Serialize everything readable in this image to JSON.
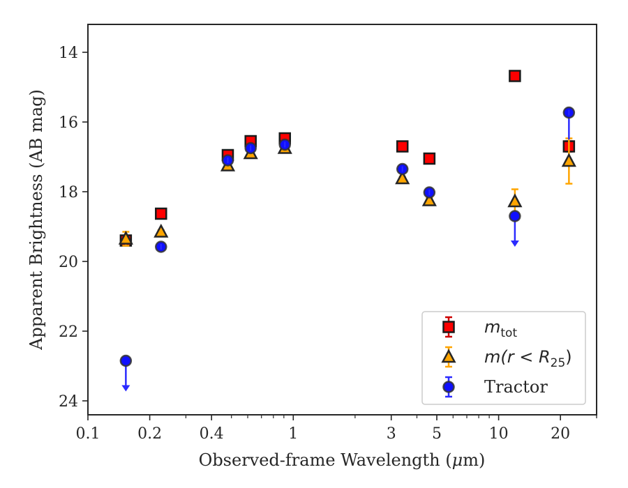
{
  "chart_data": {
    "type": "scatter",
    "xlabel_text": "Observed-frame Wavelength (",
    "xlabel_mu": "μ",
    "xlabel_end": "m)",
    "ylabel": "Apparent Brightness (AB mag)",
    "x_scale": "log",
    "y_inverted": true,
    "xlim": [
      0.1,
      30
    ],
    "ylim": [
      24.4,
      13.2
    ],
    "x_ticks": [
      {
        "value": 0.1,
        "label": "0.1"
      },
      {
        "value": 0.2,
        "label": "0.2"
      },
      {
        "value": 0.4,
        "label": "0.4"
      },
      {
        "value": 1,
        "label": "1"
      },
      {
        "value": 3,
        "label": "3"
      },
      {
        "value": 5,
        "label": "5"
      },
      {
        "value": 10,
        "label": "10"
      },
      {
        "value": 20,
        "label": "20"
      }
    ],
    "y_ticks": [
      {
        "value": 14,
        "label": "14"
      },
      {
        "value": 16,
        "label": "16"
      },
      {
        "value": 18,
        "label": "18"
      },
      {
        "value": 20,
        "label": "20"
      },
      {
        "value": 22,
        "label": "22"
      },
      {
        "value": 24,
        "label": "24"
      }
    ],
    "grid": false,
    "legend_position": "lower-right",
    "legend": [
      {
        "name": "m",
        "sub": "tot",
        "marker": "square",
        "face": "#ff0000",
        "edge": "#1a1a1a",
        "err": "#cc0000"
      },
      {
        "name": "m(r < R",
        "sub": "25",
        "tail": ")",
        "marker": "triangle",
        "face": "#ffa500",
        "edge": "#262626",
        "err": "#ffa500"
      },
      {
        "name": "Tractor",
        "marker": "circle",
        "face": "#1010ff",
        "edge": "#333333",
        "err": "#2b2bff"
      }
    ],
    "series": [
      {
        "marker": "square",
        "points": [
          {
            "x": 0.153,
            "y": 19.4,
            "err": 0.05
          },
          {
            "x": 0.227,
            "y": 18.63,
            "err": 0.05
          },
          {
            "x": 0.48,
            "y": 16.95,
            "err": 0.08
          },
          {
            "x": 0.62,
            "y": 16.55,
            "err": 0.08
          },
          {
            "x": 0.91,
            "y": 16.47,
            "err": 0.08
          },
          {
            "x": 3.4,
            "y": 16.7,
            "err": 0.05
          },
          {
            "x": 4.6,
            "y": 17.05,
            "err": 0.05
          },
          {
            "x": 12.0,
            "y": 14.68,
            "err": 0.05
          },
          {
            "x": 22.0,
            "y": 16.7,
            "err": 0.15
          }
        ]
      },
      {
        "marker": "triangle",
        "points": [
          {
            "x": 0.153,
            "y": 19.35,
            "err": 0.2
          },
          {
            "x": 0.227,
            "y": 19.15,
            "err": 0.05
          },
          {
            "x": 0.48,
            "y": 17.25,
            "err": 0.05
          },
          {
            "x": 0.62,
            "y": 16.9,
            "err": 0.05
          },
          {
            "x": 0.91,
            "y": 16.75,
            "err": 0.05
          },
          {
            "x": 3.4,
            "y": 17.62,
            "err": 0.05
          },
          {
            "x": 4.6,
            "y": 18.25,
            "err": 0.08
          },
          {
            "x": 12.0,
            "y": 18.28,
            "err": 0.35
          },
          {
            "x": 22.0,
            "y": 17.12,
            "err": 0.65
          }
        ]
      },
      {
        "marker": "circle",
        "points": [
          {
            "x": 0.153,
            "y": 22.85,
            "upper_limit": true
          },
          {
            "x": 0.227,
            "y": 19.58,
            "err": 0.05
          },
          {
            "x": 0.48,
            "y": 17.1,
            "err": 0.05
          },
          {
            "x": 0.62,
            "y": 16.75,
            "err": 0.05
          },
          {
            "x": 0.91,
            "y": 16.65,
            "err": 0.05
          },
          {
            "x": 3.4,
            "y": 17.35,
            "err": 0.05
          },
          {
            "x": 4.6,
            "y": 18.02,
            "err": 0.05
          },
          {
            "x": 12.0,
            "y": 18.7,
            "upper_limit": true
          },
          {
            "x": 22.0,
            "y": 15.73,
            "err": 0.05,
            "arrow_down_to": 16.5
          }
        ]
      }
    ]
  }
}
